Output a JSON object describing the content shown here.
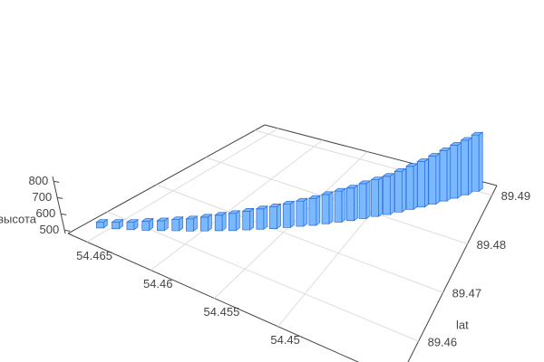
{
  "chart_data": {
    "type": "bar3d",
    "z_title": "высота",
    "y_title": "lat",
    "x": [
      54.4655,
      54.4647,
      54.4639,
      54.4631,
      54.4623,
      54.4615,
      54.4607,
      54.4599,
      54.4591,
      54.4583,
      54.4575,
      54.4567,
      54.4559,
      54.4551,
      54.4543,
      54.4535,
      54.4527,
      54.4519,
      54.4511,
      54.4503,
      54.4495,
      54.4487,
      54.4479,
      54.4471,
      54.4463,
      54.4455,
      54.4447,
      54.4439,
      54.4431,
      54.4423
    ],
    "y": [
      89.456,
      89.4572,
      89.4583,
      89.4595,
      89.4607,
      89.4619,
      89.463,
      89.4642,
      89.4654,
      89.4665,
      89.4677,
      89.4689,
      89.47,
      89.4712,
      89.4724,
      89.4735,
      89.4747,
      89.4759,
      89.477,
      89.4782,
      89.4794,
      89.4805,
      89.4817,
      89.4829,
      89.484,
      89.4852,
      89.4864,
      89.4875,
      89.4887,
      89.4899
    ],
    "z": [
      515,
      520,
      525,
      535,
      540,
      548,
      555,
      565,
      575,
      585,
      595,
      605,
      615,
      625,
      635,
      645,
      660,
      670,
      680,
      695,
      705,
      715,
      730,
      745,
      760,
      775,
      790,
      805,
      815,
      825
    ],
    "color": "#7ab8ff",
    "edge_color": "#2a6bd8",
    "xlim": [
      54.4405,
      54.4665
    ],
    "xticks": [
      54.465,
      54.46,
      54.455,
      54.45
    ],
    "ylim": [
      89.452,
      89.492
    ],
    "yticks": [
      89.46,
      89.47,
      89.48,
      89.49
    ],
    "zlim": [
      480,
      830
    ],
    "zticks": [
      500,
      600,
      700,
      800
    ],
    "grid": true
  }
}
